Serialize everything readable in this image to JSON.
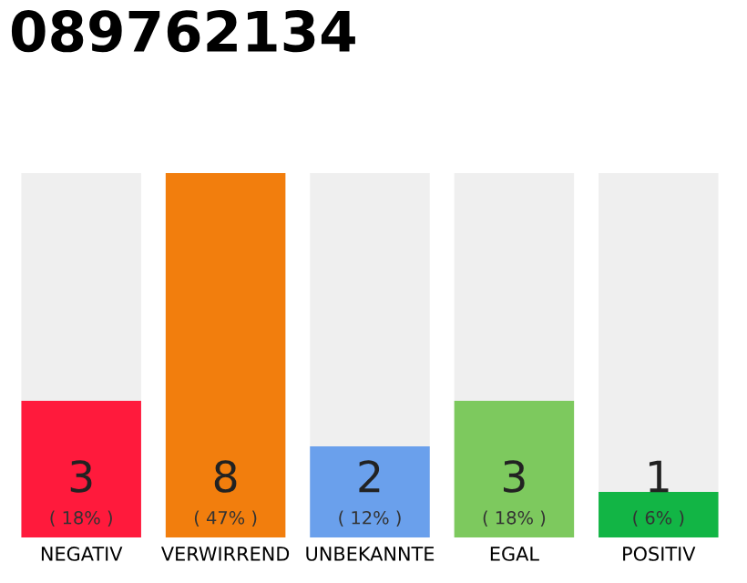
{
  "chart_data": {
    "type": "bar",
    "title": "089762134",
    "categories": [
      "NEGATIV",
      "VERWIRREND",
      "UNBEKANNTE",
      "EGAL",
      "POSITIV"
    ],
    "values": [
      3,
      8,
      2,
      3,
      1
    ],
    "colors": [
      "#ff1a3c",
      "#f27e0d",
      "#6aa0ec",
      "#7dc95e",
      "#12b545"
    ],
    "ylim": [
      0,
      8
    ],
    "tick_labels": "x",
    "data_labels": true,
    "grid": false,
    "legend": false,
    "annotations": [
      {
        "text": "( 18% )",
        "x": "NEGATIV",
        "y": 0
      },
      {
        "text": "( 47% )",
        "x": "VERWIRREND",
        "y": 0
      },
      {
        "text": "( 12% )",
        "x": "UNBEKANNTE",
        "y": 0
      },
      {
        "text": "( 18% )",
        "x": "EGAL",
        "y": 0
      },
      {
        "text": "( 6% )",
        "x": "POSITIV",
        "y": 0
      }
    ]
  }
}
